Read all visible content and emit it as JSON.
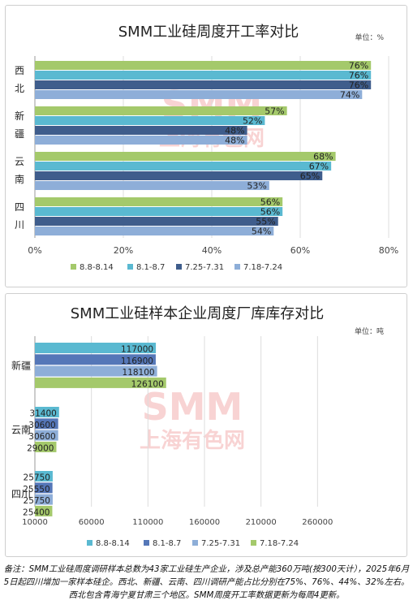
{
  "chart_data": [
    {
      "type": "bar",
      "orientation": "horizontal",
      "title": "SMM工业硅周度开工率对比",
      "unit": "单位：%",
      "categories": [
        [
          "西",
          "北"
        ],
        [
          "新",
          "疆"
        ],
        [
          "云",
          "南"
        ],
        [
          "四",
          "川"
        ]
      ],
      "series": [
        {
          "name": "8.8-8.14",
          "color": "#a4c96b",
          "values": [
            76,
            57,
            68,
            56
          ],
          "labels": [
            "76%",
            "57%",
            "68%",
            "56%"
          ]
        },
        {
          "name": "8.1-8.7",
          "color": "#5ab9d1",
          "values": [
            76,
            52,
            67,
            56
          ],
          "labels": [
            "76%",
            "52%",
            "67%",
            "56%"
          ]
        },
        {
          "name": "7.25-7.31",
          "color": "#3f5d8c",
          "values": [
            76,
            48,
            65,
            55
          ],
          "labels": [
            "76%",
            "48%",
            "65%",
            "55%"
          ]
        },
        {
          "name": "7.18-7.24",
          "color": "#8eaed8",
          "values": [
            74,
            48,
            53,
            54
          ],
          "labels": [
            "74%",
            "48%",
            "53%",
            "54%"
          ]
        }
      ],
      "xlim": [
        0,
        80
      ],
      "xticks": [
        0,
        20,
        40,
        60,
        80
      ],
      "xtick_labels": [
        "0%",
        "20%",
        "40%",
        "60%",
        "80%"
      ],
      "grid": true,
      "legend": "bottom",
      "watermark": {
        "logo": "SMM",
        "text": "上海有色网"
      }
    },
    {
      "type": "bar",
      "orientation": "horizontal",
      "title": "SMM工业硅样本企业周度厂库库存对比",
      "unit": "单位：吨",
      "categories": [
        [
          "新疆"
        ],
        [
          "云南"
        ],
        [
          "四川"
        ]
      ],
      "series": [
        {
          "name": "8.8-8.14",
          "color": "#5ab9d1",
          "values": [
            117000,
            31400,
            25750
          ],
          "labels": [
            "117000",
            "31400",
            "25750"
          ]
        },
        {
          "name": "8.1-8.7",
          "color": "#5577b8",
          "values": [
            116900,
            30600,
            25550
          ],
          "labels": [
            "116900",
            "30600",
            "25550"
          ]
        },
        {
          "name": "7.25-7.31",
          "color": "#8eaed8",
          "values": [
            118100,
            30600,
            25750
          ],
          "labels": [
            "118100",
            "30600",
            "25750"
          ]
        },
        {
          "name": "7.18-7.24",
          "color": "#a4c96b",
          "values": [
            126100,
            29000,
            25400
          ],
          "labels": [
            "126100",
            "29000",
            "25400"
          ]
        }
      ],
      "xlim": [
        10000,
        310000
      ],
      "xticks": [
        10000,
        60000,
        110000,
        160000,
        210000,
        260000
      ],
      "xtick_labels": [
        "10000",
        "60000",
        "110000",
        "160000",
        "210000",
        "260000"
      ],
      "grid": true,
      "legend": "bottom",
      "watermark": {
        "logo": "SMM",
        "text": "上海有色网"
      }
    }
  ],
  "footnote": "备注：SMM工业硅周度调研样本总数为43家工业硅生产企业，涉及总产能360万吨(按300天计），2025年6月5日起四川增加一家样本硅企。西北、新疆、云南、四川调研产能占比分别在75%、76%、44%、32%左右。西北包含青海宁夏甘肃三个地区。SMM周度开工率数据更新为每周4更新。"
}
